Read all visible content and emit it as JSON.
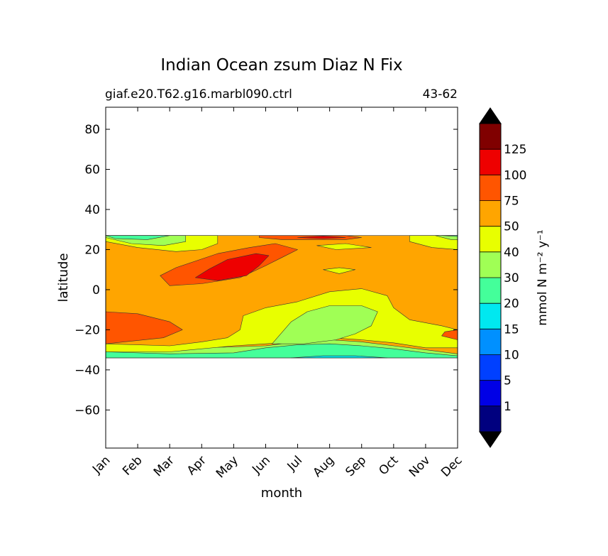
{
  "chart_data": {
    "type": "heatmap",
    "title": "Indian Ocean zsum Diaz N Fix",
    "subtitle_left": "giaf.e20.T62.g16.marbl090.ctrl",
    "subtitle_right": "43-62",
    "xlabel": "month",
    "ylabel": "latitude",
    "x_categories": [
      "Jan",
      "Feb",
      "Mar",
      "Apr",
      "May",
      "Jun",
      "Jul",
      "Aug",
      "Sep",
      "Oct",
      "Nov",
      "Dec"
    ],
    "xlim": [
      0,
      11
    ],
    "ylim": [
      -79,
      91
    ],
    "y_ticks": [
      80,
      60,
      40,
      20,
      0,
      -20,
      -40,
      -60
    ],
    "y_tick_labels": [
      "80",
      "60",
      "40",
      "20",
      "0",
      "−20",
      "−40",
      "−60"
    ],
    "data_lat_range": [
      -34,
      27
    ],
    "colorbar": {
      "label": "mmol N m⁻² y⁻¹",
      "levels": [
        0,
        1,
        5,
        10,
        15,
        20,
        30,
        40,
        50,
        75,
        100,
        125,
        150
      ],
      "tick_labels": [
        "1",
        "5",
        "10",
        "15",
        "20",
        "30",
        "40",
        "50",
        "75",
        "100",
        "125"
      ],
      "colors": [
        "#00007f",
        "#0000e6",
        "#0040ff",
        "#0090ff",
        "#00e8f0",
        "#44ff9a",
        "#a0ff55",
        "#e8ff00",
        "#ffa500",
        "#ff5500",
        "#ee0000",
        "#800000"
      ],
      "extend_under_color": "#000000",
      "extend_over_color": "#000000"
    },
    "field_regions": [
      {
        "band": "50-75",
        "color": "#ffa500",
        "points": [
          [
            0,
            27
          ],
          [
            11,
            27
          ],
          [
            11,
            -34
          ],
          [
            0,
            -34
          ]
        ]
      },
      {
        "band": "30-40",
        "color": "#a0ff55",
        "points": [
          [
            0,
            -28
          ],
          [
            3,
            -29
          ],
          [
            5,
            -28
          ],
          [
            6,
            -26
          ],
          [
            7,
            -25
          ],
          [
            8,
            -26
          ],
          [
            9,
            -28
          ],
          [
            10,
            -30
          ],
          [
            11,
            -32
          ],
          [
            11,
            -34
          ],
          [
            0,
            -34
          ]
        ]
      },
      {
        "band": "20-30",
        "color": "#44ff9a",
        "points": [
          [
            0,
            -31
          ],
          [
            2,
            -32
          ],
          [
            4,
            -31.5
          ],
          [
            5,
            -29
          ],
          [
            6,
            -27.5
          ],
          [
            7,
            -27
          ],
          [
            8,
            -28
          ],
          [
            9,
            -29.5
          ],
          [
            10,
            -31.5
          ],
          [
            11,
            -33
          ],
          [
            11,
            -34
          ],
          [
            0,
            -34
          ]
        ]
      },
      {
        "band": "15-20",
        "color": "#00e8f0",
        "points": [
          [
            5.8,
            -34
          ],
          [
            6.8,
            -33
          ],
          [
            7.8,
            -33
          ],
          [
            8.8,
            -34
          ]
        ]
      },
      {
        "band": "40-50",
        "color": "#e8ff00",
        "points": [
          [
            0,
            -27
          ],
          [
            2,
            -28
          ],
          [
            3,
            -26
          ],
          [
            3.8,
            -24
          ],
          [
            4.2,
            -20
          ],
          [
            4.3,
            -13
          ],
          [
            5,
            -9
          ],
          [
            6,
            -6
          ],
          [
            7,
            -1
          ],
          [
            8,
            0.5
          ],
          [
            8.8,
            -3
          ],
          [
            9,
            -9
          ],
          [
            9.5,
            -15
          ],
          [
            10.5,
            -18
          ],
          [
            11,
            -20
          ],
          [
            11,
            -29
          ],
          [
            10,
            -29
          ],
          [
            9,
            -26.5
          ],
          [
            8,
            -25
          ],
          [
            7,
            -24
          ],
          [
            6,
            -26
          ],
          [
            5,
            -27
          ],
          [
            4,
            -28
          ],
          [
            2,
            -31
          ],
          [
            0,
            -31
          ]
        ]
      },
      {
        "band": "30-40",
        "color": "#a0ff55",
        "points": [
          [
            5.2,
            -27
          ],
          [
            5.8,
            -16
          ],
          [
            6.3,
            -11
          ],
          [
            7,
            -8
          ],
          [
            8,
            -8
          ],
          [
            8.5,
            -11
          ],
          [
            8.3,
            -18
          ],
          [
            7.8,
            -22
          ],
          [
            7.2,
            -25
          ],
          [
            6.2,
            -27
          ]
        ]
      },
      {
        "band": "40-50",
        "color": "#e8ff00",
        "points": [
          [
            6.8,
            10
          ],
          [
            7.3,
            11
          ],
          [
            7.8,
            10
          ],
          [
            7.3,
            8
          ]
        ]
      },
      {
        "band": "40-50",
        "color": "#e8ff00",
        "points": [
          [
            6.6,
            22
          ],
          [
            7.5,
            23
          ],
          [
            8.3,
            21
          ],
          [
            7.2,
            20
          ]
        ]
      },
      {
        "band": "40-50",
        "color": "#e8ff00",
        "points": [
          [
            0,
            24
          ],
          [
            1,
            21
          ],
          [
            2.2,
            19
          ],
          [
            3,
            20
          ],
          [
            3.5,
            23
          ],
          [
            3.5,
            27
          ],
          [
            0,
            27
          ]
        ]
      },
      {
        "band": "30-40",
        "color": "#a0ff55",
        "points": [
          [
            0,
            26
          ],
          [
            0.8,
            23
          ],
          [
            1.8,
            22
          ],
          [
            2.5,
            24
          ],
          [
            2.5,
            27
          ],
          [
            0,
            27
          ]
        ]
      },
      {
        "band": "20-30",
        "color": "#44ff9a",
        "points": [
          [
            0,
            27
          ],
          [
            0.3,
            25.5
          ],
          [
            1.3,
            25
          ],
          [
            2,
            27
          ]
        ]
      },
      {
        "band": "40-50",
        "color": "#e8ff00",
        "points": [
          [
            9.5,
            24
          ],
          [
            10.2,
            21
          ],
          [
            11,
            20
          ],
          [
            11,
            27
          ],
          [
            9.5,
            27
          ]
        ]
      },
      {
        "band": "30-40",
        "color": "#a0ff55",
        "points": [
          [
            10.3,
            27
          ],
          [
            10.8,
            25
          ],
          [
            11,
            25
          ],
          [
            11,
            27
          ]
        ]
      },
      {
        "band": "20-30",
        "color": "#44ff9a",
        "points": [
          [
            10.5,
            27
          ],
          [
            11,
            27
          ],
          [
            11,
            26.5
          ]
        ]
      },
      {
        "band": "75-100",
        "color": "#ff5500",
        "points": [
          [
            0,
            -11
          ],
          [
            1,
            -12
          ],
          [
            2,
            -16
          ],
          [
            2.4,
            -20
          ],
          [
            1.8,
            -24
          ],
          [
            0,
            -27
          ]
        ]
      },
      {
        "band": "75-100",
        "color": "#ff5500",
        "points": [
          [
            11,
            -20
          ],
          [
            10.6,
            -21
          ],
          [
            10.5,
            -23
          ],
          [
            11,
            -25
          ]
        ]
      },
      {
        "band": "75-100",
        "color": "#ff5500",
        "points": [
          [
            1.7,
            7
          ],
          [
            2.2,
            11
          ],
          [
            3.5,
            18
          ],
          [
            4.5,
            21
          ],
          [
            5.3,
            23
          ],
          [
            6,
            20
          ],
          [
            5.5,
            16
          ],
          [
            5,
            12
          ],
          [
            4.2,
            6
          ],
          [
            3,
            3
          ],
          [
            2,
            2
          ]
        ]
      },
      {
        "band": "100-125",
        "color": "#ee0000",
        "points": [
          [
            2.8,
            6
          ],
          [
            3.2,
            10
          ],
          [
            3.8,
            15
          ],
          [
            4.7,
            18
          ],
          [
            5.1,
            17
          ],
          [
            4.8,
            12
          ],
          [
            4.4,
            7
          ],
          [
            3.5,
            4.5
          ]
        ]
      },
      {
        "band": "75-100",
        "color": "#ff5500",
        "points": [
          [
            4.8,
            26
          ],
          [
            5.5,
            25
          ],
          [
            7.5,
            25
          ],
          [
            8,
            26
          ],
          [
            7.5,
            27
          ],
          [
            4.8,
            27
          ]
        ]
      },
      {
        "band": "100-125",
        "color": "#ee0000",
        "points": [
          [
            6,
            26
          ],
          [
            6.8,
            25.5
          ],
          [
            7.5,
            26
          ],
          [
            6.8,
            26.8
          ]
        ]
      }
    ]
  }
}
